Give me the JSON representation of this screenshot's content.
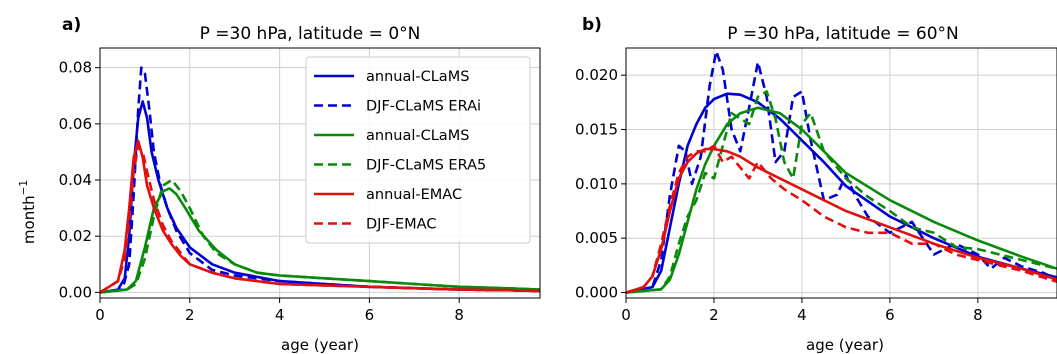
{
  "chart_data": [
    {
      "type": "line",
      "panel_label": "a)",
      "title": "P =30 hPa, latitude =  0°N",
      "xlabel": "age (year)",
      "ylabel": "month",
      "ylabel_exponent": "−1",
      "xlim": [
        0,
        9.8
      ],
      "ylim": [
        -0.002,
        0.087
      ],
      "xticks": [
        0,
        2,
        4,
        6,
        8
      ],
      "yticks": [
        0.0,
        0.02,
        0.04,
        0.06,
        0.08
      ],
      "ytick_labels": [
        "0.00",
        "0.02",
        "0.04",
        "0.06",
        "0.08"
      ],
      "grid": true,
      "legend": "top-right",
      "series": [
        {
          "name": "annual-CLaMS",
          "color": "#0000d0",
          "dash": "solid",
          "x": [
            0,
            0.4,
            0.55,
            0.65,
            0.75,
            0.85,
            0.95,
            1.05,
            1.15,
            1.3,
            1.5,
            1.7,
            2.0,
            2.5,
            3.0,
            4.0,
            5.0,
            6.0,
            7.0,
            8.0,
            9.0,
            9.8
          ],
          "y": [
            0,
            0.001,
            0.005,
            0.02,
            0.045,
            0.062,
            0.068,
            0.062,
            0.05,
            0.04,
            0.03,
            0.023,
            0.016,
            0.01,
            0.007,
            0.004,
            0.003,
            0.002,
            0.0015,
            0.001,
            0.0008,
            0.0005
          ]
        },
        {
          "name": "DJF-CLaMS ERAi",
          "color": "#0000d0",
          "dash": "dashed",
          "x": [
            0,
            0.5,
            0.65,
            0.75,
            0.85,
            0.92,
            1.0,
            1.1,
            1.2,
            1.35,
            1.5,
            1.7,
            2.0,
            2.5,
            3.0,
            4.0,
            5.0,
            6.0,
            7.0,
            8.0,
            9.0,
            9.8
          ],
          "y": [
            0,
            0.001,
            0.01,
            0.035,
            0.065,
            0.08,
            0.078,
            0.065,
            0.05,
            0.038,
            0.03,
            0.022,
            0.014,
            0.008,
            0.006,
            0.004,
            0.003,
            0.002,
            0.0015,
            0.001,
            0.0008,
            0.0005
          ]
        },
        {
          "name": "annual-CLaMS",
          "color": "#0a8a0a",
          "dash": "solid",
          "x": [
            0,
            0.6,
            0.8,
            1.0,
            1.2,
            1.4,
            1.55,
            1.7,
            1.9,
            2.2,
            2.6,
            3.0,
            3.5,
            4.0,
            5.0,
            6.0,
            7.0,
            8.0,
            9.0,
            9.8
          ],
          "y": [
            0,
            0.001,
            0.004,
            0.016,
            0.03,
            0.036,
            0.037,
            0.035,
            0.03,
            0.022,
            0.015,
            0.01,
            0.007,
            0.006,
            0.005,
            0.004,
            0.003,
            0.002,
            0.0015,
            0.001
          ]
        },
        {
          "name": "DJF-CLaMS ERA5",
          "color": "#0a8a0a",
          "dash": "dashed",
          "x": [
            0,
            0.6,
            0.8,
            1.0,
            1.2,
            1.4,
            1.6,
            1.8,
            2.0,
            2.3,
            2.6,
            3.0,
            3.5,
            4.0,
            5.0,
            6.0,
            7.0,
            8.0,
            9.0,
            9.8
          ],
          "y": [
            0,
            0.001,
            0.003,
            0.012,
            0.027,
            0.038,
            0.04,
            0.036,
            0.03,
            0.02,
            0.014,
            0.01,
            0.007,
            0.006,
            0.005,
            0.004,
            0.003,
            0.002,
            0.0015,
            0.001
          ]
        },
        {
          "name": "annual-EMAC",
          "color": "#e01010",
          "dash": "solid",
          "x": [
            0,
            0.2,
            0.4,
            0.55,
            0.65,
            0.75,
            0.85,
            0.95,
            1.05,
            1.2,
            1.4,
            1.6,
            1.8,
            2.0,
            2.5,
            3.0,
            4.0,
            5.0,
            6.0,
            7.0,
            8.0,
            9.0,
            9.8
          ],
          "y": [
            0,
            0.002,
            0.004,
            0.015,
            0.03,
            0.048,
            0.054,
            0.048,
            0.038,
            0.03,
            0.022,
            0.017,
            0.013,
            0.01,
            0.007,
            0.005,
            0.003,
            0.0025,
            0.002,
            0.0015,
            0.001,
            0.0008,
            0.0005
          ]
        },
        {
          "name": "DJF-EMAC",
          "color": "#e01010",
          "dash": "dashed",
          "x": [
            0,
            0.2,
            0.4,
            0.55,
            0.65,
            0.75,
            0.85,
            0.95,
            1.05,
            1.2,
            1.4,
            1.6,
            1.8,
            2.0,
            2.5,
            3.0,
            4.0,
            5.0,
            6.0,
            7.0,
            8.0,
            9.0,
            9.8
          ],
          "y": [
            0,
            0.002,
            0.004,
            0.012,
            0.025,
            0.043,
            0.052,
            0.05,
            0.043,
            0.033,
            0.024,
            0.018,
            0.014,
            0.01,
            0.007,
            0.005,
            0.003,
            0.0025,
            0.002,
            0.0015,
            0.001,
            0.0008,
            0.0005
          ]
        }
      ]
    },
    {
      "type": "line",
      "panel_label": "b)",
      "title": "P =30 hPa, latitude = 60°N",
      "xlabel": "age (year)",
      "ylabel": "",
      "xlim": [
        0,
        9.8
      ],
      "ylim": [
        -0.0005,
        0.0225
      ],
      "xticks": [
        0,
        2,
        4,
        6,
        8
      ],
      "yticks": [
        0.0,
        0.005,
        0.01,
        0.015,
        0.02
      ],
      "ytick_labels": [
        "0.000",
        "0.005",
        "0.010",
        "0.015",
        "0.020"
      ],
      "grid": true,
      "legend": "none",
      "series": [
        {
          "name": "annual-CLaMS",
          "color": "#0000d0",
          "dash": "solid",
          "x": [
            0,
            0.6,
            0.8,
            1.0,
            1.2,
            1.4,
            1.6,
            1.8,
            2.0,
            2.3,
            2.6,
            3.0,
            3.5,
            4.0,
            4.5,
            5.0,
            6.0,
            7.0,
            8.0,
            9.0,
            9.8
          ],
          "y": [
            0,
            0.0005,
            0.002,
            0.006,
            0.01,
            0.0135,
            0.0155,
            0.017,
            0.0178,
            0.0183,
            0.0182,
            0.0175,
            0.016,
            0.014,
            0.012,
            0.0098,
            0.007,
            0.005,
            0.0033,
            0.0022,
            0.0014
          ]
        },
        {
          "name": "DJF-CLaMS ERAi",
          "color": "#0000d0",
          "dash": "dashed",
          "x": [
            0,
            0.6,
            0.8,
            1.0,
            1.2,
            1.35,
            1.5,
            1.7,
            1.9,
            2.05,
            2.2,
            2.4,
            2.6,
            2.8,
            3.0,
            3.2,
            3.4,
            3.6,
            3.8,
            4.0,
            4.2,
            4.5,
            4.8,
            5.0,
            5.2,
            5.5,
            6.0,
            6.5,
            7.0,
            7.5,
            8.0,
            8.3,
            8.6,
            9.0,
            9.5,
            9.8
          ],
          "y": [
            0,
            0.0005,
            0.003,
            0.009,
            0.0135,
            0.013,
            0.01,
            0.0125,
            0.019,
            0.0222,
            0.0205,
            0.015,
            0.013,
            0.017,
            0.0212,
            0.018,
            0.012,
            0.013,
            0.018,
            0.0185,
            0.014,
            0.0085,
            0.009,
            0.0108,
            0.009,
            0.007,
            0.0055,
            0.0065,
            0.0035,
            0.0045,
            0.0035,
            0.0022,
            0.0032,
            0.0024,
            0.0018,
            0.0012
          ]
        },
        {
          "name": "annual-CLaMS",
          "color": "#0a8a0a",
          "dash": "solid",
          "x": [
            0,
            0.8,
            1.0,
            1.2,
            1.4,
            1.6,
            1.8,
            2.0,
            2.3,
            2.6,
            3.0,
            3.5,
            4.0,
            4.5,
            5.0,
            6.0,
            7.0,
            8.0,
            9.0,
            9.8
          ],
          "y": [
            0,
            0.0003,
            0.0012,
            0.0035,
            0.0065,
            0.0095,
            0.0118,
            0.0135,
            0.0155,
            0.0165,
            0.017,
            0.0165,
            0.015,
            0.013,
            0.011,
            0.0085,
            0.0065,
            0.0048,
            0.0033,
            0.0022
          ]
        },
        {
          "name": "DJF-CLaMS ERA5",
          "color": "#0a8a0a",
          "dash": "dashed",
          "x": [
            0,
            0.8,
            1.0,
            1.2,
            1.4,
            1.6,
            1.8,
            2.0,
            2.2,
            2.4,
            2.6,
            2.8,
            3.0,
            3.2,
            3.4,
            3.6,
            3.8,
            4.0,
            4.2,
            4.5,
            5.0,
            5.5,
            6.0,
            6.5,
            7.0,
            7.5,
            8.0,
            9.0,
            9.8
          ],
          "y": [
            0,
            0.0003,
            0.0015,
            0.0045,
            0.007,
            0.0085,
            0.011,
            0.0105,
            0.0135,
            0.0165,
            0.016,
            0.0155,
            0.018,
            0.0185,
            0.016,
            0.012,
            0.0105,
            0.0155,
            0.0165,
            0.013,
            0.0105,
            0.0088,
            0.0075,
            0.006,
            0.0055,
            0.0042,
            0.004,
            0.003,
            0.0022
          ]
        },
        {
          "name": "annual-EMAC",
          "color": "#e01010",
          "dash": "solid",
          "x": [
            0,
            0.4,
            0.6,
            0.8,
            1.0,
            1.2,
            1.4,
            1.6,
            1.8,
            2.0,
            2.3,
            2.6,
            3.0,
            3.5,
            4.0,
            4.5,
            5.0,
            6.0,
            7.0,
            8.0,
            9.0,
            9.8
          ],
          "y": [
            0,
            0.0005,
            0.0015,
            0.004,
            0.0075,
            0.0105,
            0.012,
            0.0128,
            0.0132,
            0.0132,
            0.013,
            0.0125,
            0.0115,
            0.0105,
            0.0095,
            0.0085,
            0.0075,
            0.006,
            0.0045,
            0.0032,
            0.0022,
            0.0012
          ]
        },
        {
          "name": "DJF-EMAC",
          "color": "#e01010",
          "dash": "dashed",
          "x": [
            0,
            0.4,
            0.6,
            0.8,
            1.0,
            1.2,
            1.4,
            1.6,
            1.8,
            2.0,
            2.2,
            2.4,
            2.6,
            2.8,
            3.0,
            3.3,
            3.6,
            4.0,
            4.5,
            5.0,
            5.5,
            6.0,
            6.5,
            7.0,
            7.5,
            8.0,
            9.0,
            9.8
          ],
          "y": [
            0,
            0.0005,
            0.0015,
            0.0045,
            0.008,
            0.011,
            0.0125,
            0.013,
            0.013,
            0.0135,
            0.012,
            0.0125,
            0.0115,
            0.0105,
            0.012,
            0.0105,
            0.0095,
            0.0085,
            0.007,
            0.006,
            0.0055,
            0.0055,
            0.0045,
            0.0045,
            0.0035,
            0.003,
            0.002,
            0.001
          ]
        }
      ]
    }
  ]
}
